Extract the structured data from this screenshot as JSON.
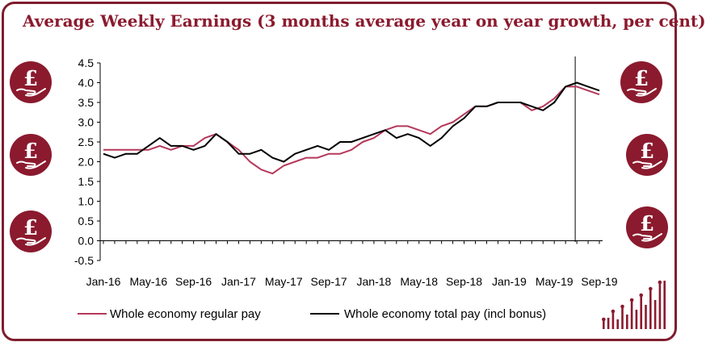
{
  "title": "Average Weekly Earnings (3 months average year on year growth, per cent)",
  "colors": {
    "frame": "#7f1d2d",
    "accent": "#8b1a2e",
    "regular": "#b5385a",
    "total": "#000000"
  },
  "decorations": {
    "left_icons": [
      "pound-hand-icon",
      "pound-hand-icon",
      "pound-hand-icon"
    ],
    "right_icons": [
      "pound-hand-icon",
      "pound-hand-icon",
      "pound-hand-icon"
    ],
    "corner_icon": "bar-chart-icon"
  },
  "chart_data": {
    "type": "line",
    "title": "",
    "xlabel": "",
    "ylabel": "",
    "ylim": [
      -0.5,
      4.5
    ],
    "yticks": [
      "4.5",
      "4.0",
      "3.5",
      "3.0",
      "2.5",
      "2.0",
      "1.5",
      "1.0",
      "0.5",
      "0.0",
      "-0.5"
    ],
    "x_tick_labels": [
      "Jan-16",
      "May-16",
      "Sep-16",
      "Jan-17",
      "May-17",
      "Sep-17",
      "Jan-18",
      "May-18",
      "Sep-18",
      "Jan-19",
      "May-19",
      "Sep-19"
    ],
    "x_start": "Jan-16",
    "x_end": "Sep-19",
    "vertical_line_at": "Jul-19",
    "legend_position": "bottom",
    "series": [
      {
        "name": "Whole economy regular pay",
        "color": "#b5385a",
        "values": [
          2.3,
          2.3,
          2.3,
          2.3,
          2.3,
          2.4,
          2.3,
          2.4,
          2.4,
          2.6,
          2.7,
          2.5,
          2.3,
          2.0,
          1.8,
          1.7,
          1.9,
          2.0,
          2.1,
          2.1,
          2.2,
          2.2,
          2.3,
          2.5,
          2.6,
          2.8,
          2.9,
          2.9,
          2.8,
          2.7,
          2.9,
          3.0,
          3.2,
          3.4,
          3.4,
          3.5,
          3.5,
          3.5,
          3.3,
          3.4,
          3.6,
          3.9,
          3.9,
          3.8,
          3.7
        ]
      },
      {
        "name": "Whole economy total pay (incl bonus)",
        "color": "#000000",
        "values": [
          2.2,
          2.1,
          2.2,
          2.2,
          2.4,
          2.6,
          2.4,
          2.4,
          2.3,
          2.4,
          2.7,
          2.5,
          2.2,
          2.2,
          2.3,
          2.1,
          2.0,
          2.2,
          2.3,
          2.4,
          2.3,
          2.5,
          2.5,
          2.6,
          2.7,
          2.8,
          2.6,
          2.7,
          2.6,
          2.4,
          2.6,
          2.9,
          3.1,
          3.4,
          3.4,
          3.5,
          3.5,
          3.5,
          3.4,
          3.3,
          3.5,
          3.9,
          4.0,
          3.9,
          3.8
        ]
      }
    ]
  }
}
